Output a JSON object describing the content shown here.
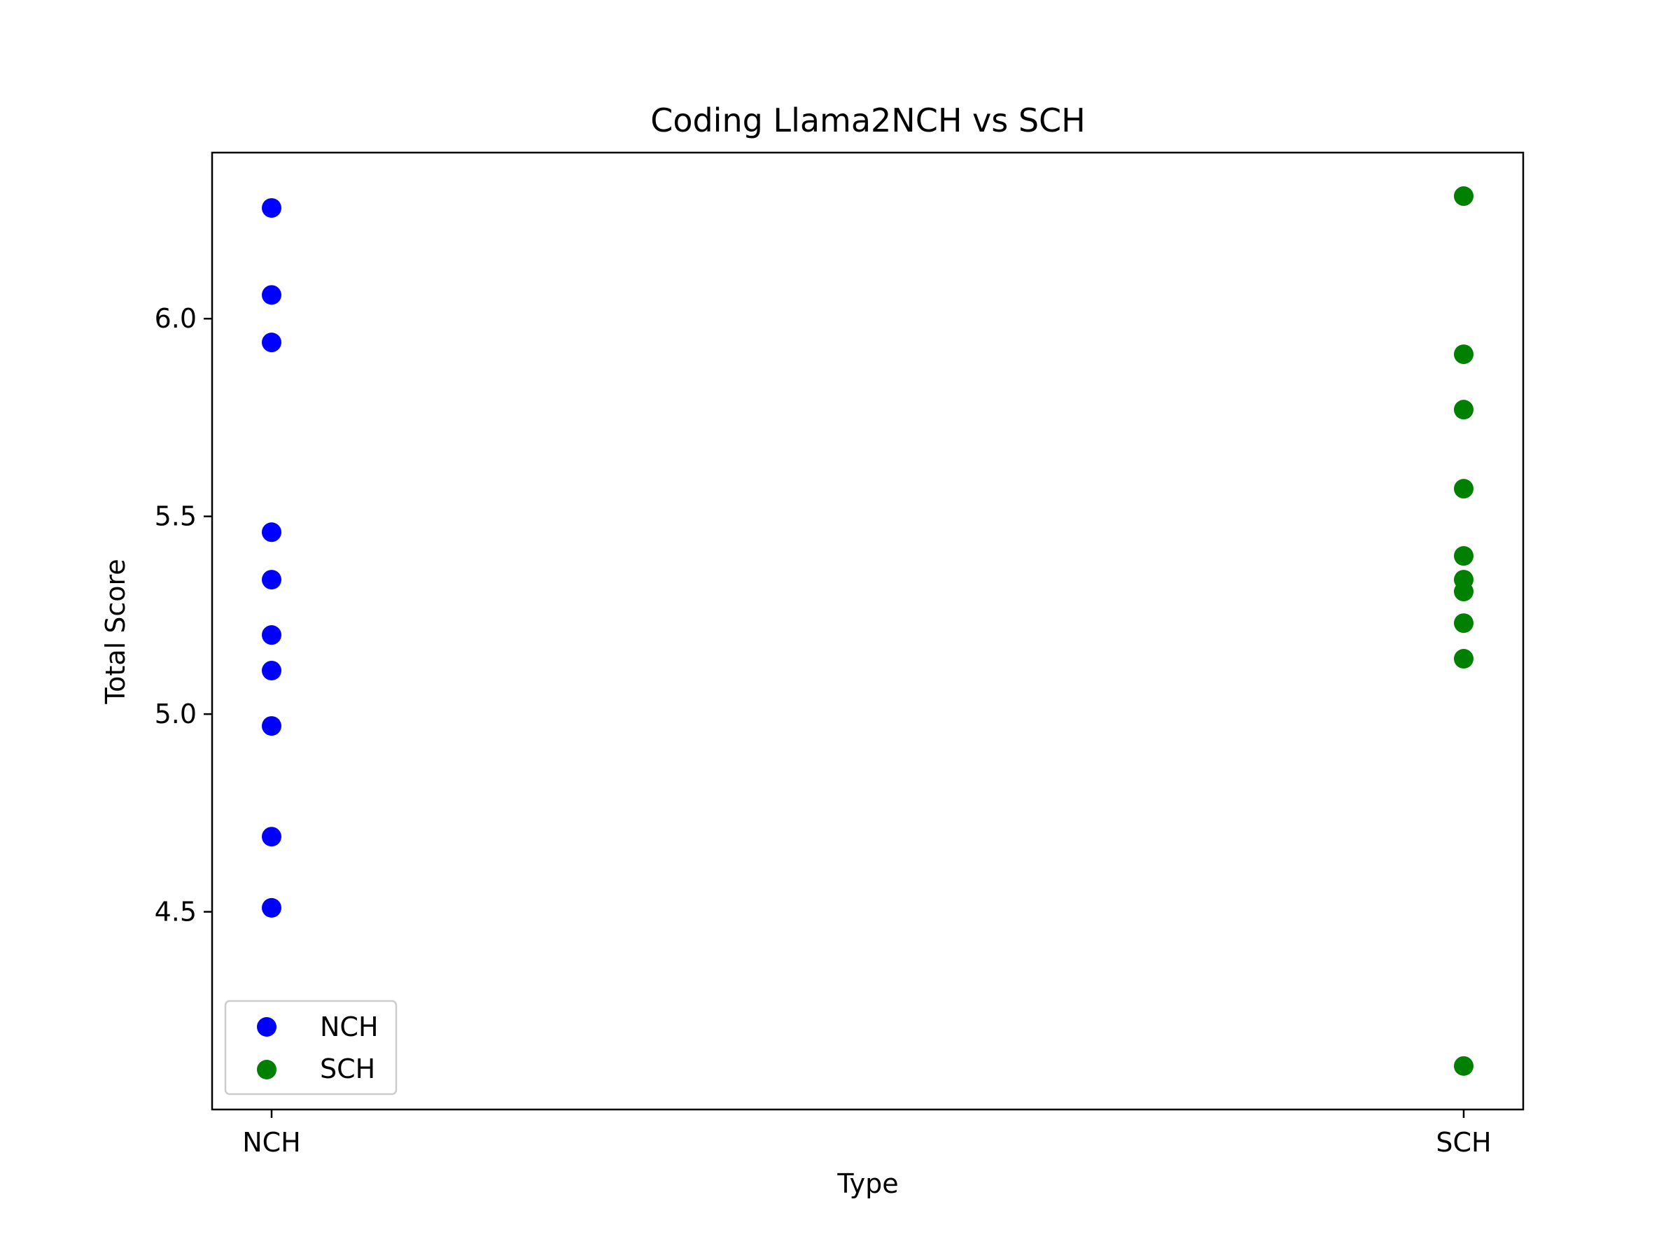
{
  "chart_data": {
    "type": "scatter",
    "title": "Coding Llama2NCH vs SCH",
    "xlabel": "Type",
    "ylabel": "Total Score",
    "categories": [
      "NCH",
      "SCH"
    ],
    "ylim": [
      4.0,
      6.42
    ],
    "yticks": [
      "4.5",
      "5.0",
      "5.5",
      "6.0"
    ],
    "grid": false,
    "legend_position": "lower-left",
    "series": [
      {
        "name": "NCH",
        "color": "#0000ff",
        "category": "NCH",
        "values": [
          6.28,
          6.06,
          5.94,
          5.46,
          5.34,
          5.2,
          5.11,
          4.97,
          4.69,
          4.51
        ]
      },
      {
        "name": "SCH",
        "color": "#008000",
        "category": "SCH",
        "values": [
          6.31,
          5.91,
          5.77,
          5.57,
          5.4,
          5.34,
          5.31,
          5.23,
          5.14,
          4.11
        ]
      }
    ]
  }
}
